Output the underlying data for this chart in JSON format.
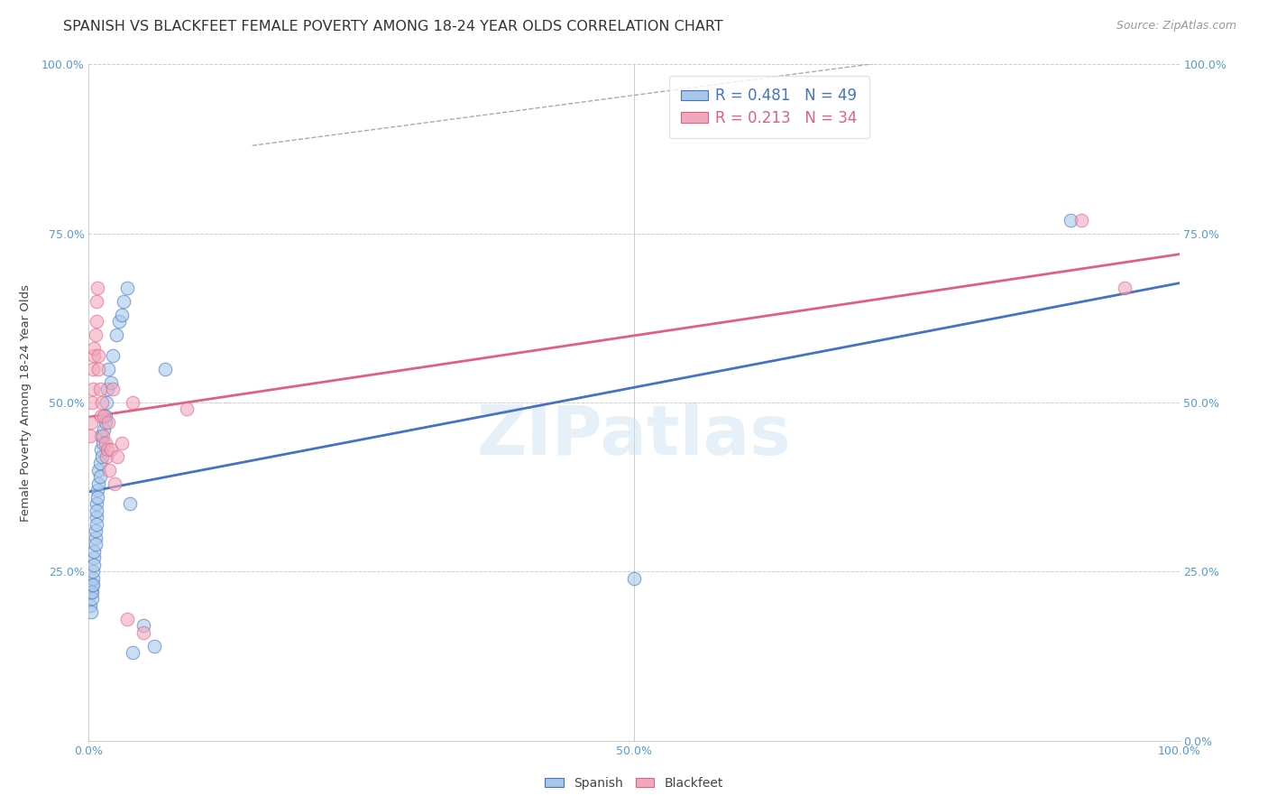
{
  "title": "SPANISH VS BLACKFEET FEMALE POVERTY AMONG 18-24 YEAR OLDS CORRELATION CHART",
  "source": "Source: ZipAtlas.com",
  "ylabel": "Female Poverty Among 18-24 Year Olds",
  "watermark": "ZIPatlas",
  "spanish_color": "#A8C8E8",
  "blackfeet_color": "#F0A8BC",
  "spanish_line_color": "#4472C4",
  "blackfeet_line_color": "#E06080",
  "spanish_x": [
    0.001,
    0.002,
    0.002,
    0.003,
    0.003,
    0.003,
    0.004,
    0.004,
    0.004,
    0.005,
    0.005,
    0.005,
    0.006,
    0.006,
    0.006,
    0.007,
    0.007,
    0.007,
    0.007,
    0.008,
    0.008,
    0.009,
    0.009,
    0.01,
    0.01,
    0.011,
    0.011,
    0.012,
    0.013,
    0.014,
    0.015,
    0.015,
    0.016,
    0.017,
    0.018,
    0.02,
    0.022,
    0.025,
    0.028,
    0.03,
    0.032,
    0.035,
    0.038,
    0.04,
    0.05,
    0.06,
    0.07,
    0.5,
    0.9
  ],
  "spanish_y": [
    0.2,
    0.19,
    0.22,
    0.21,
    0.23,
    0.22,
    0.24,
    0.23,
    0.25,
    0.27,
    0.26,
    0.28,
    0.3,
    0.29,
    0.31,
    0.33,
    0.35,
    0.34,
    0.32,
    0.37,
    0.36,
    0.38,
    0.4,
    0.39,
    0.41,
    0.43,
    0.45,
    0.42,
    0.44,
    0.46,
    0.48,
    0.47,
    0.5,
    0.52,
    0.55,
    0.53,
    0.57,
    0.6,
    0.62,
    0.63,
    0.65,
    0.67,
    0.35,
    0.13,
    0.17,
    0.14,
    0.55,
    0.24,
    0.77
  ],
  "blackfeet_x": [
    0.001,
    0.002,
    0.003,
    0.004,
    0.004,
    0.005,
    0.005,
    0.006,
    0.007,
    0.007,
    0.008,
    0.009,
    0.009,
    0.01,
    0.011,
    0.012,
    0.013,
    0.014,
    0.015,
    0.016,
    0.017,
    0.018,
    0.019,
    0.02,
    0.022,
    0.024,
    0.026,
    0.03,
    0.035,
    0.04,
    0.05,
    0.09,
    0.91,
    0.95
  ],
  "blackfeet_y": [
    0.45,
    0.47,
    0.5,
    0.52,
    0.55,
    0.57,
    0.58,
    0.6,
    0.62,
    0.65,
    0.67,
    0.57,
    0.55,
    0.52,
    0.48,
    0.5,
    0.45,
    0.48,
    0.44,
    0.42,
    0.43,
    0.47,
    0.4,
    0.43,
    0.52,
    0.38,
    0.42,
    0.44,
    0.18,
    0.5,
    0.16,
    0.49,
    0.77,
    0.67
  ],
  "xlim": [
    0.0,
    1.0
  ],
  "ylim": [
    0.0,
    1.0
  ],
  "xticks": [
    0.0,
    0.1,
    0.2,
    0.3,
    0.4,
    0.5,
    0.6,
    0.7,
    0.8,
    0.9,
    1.0
  ],
  "xticklabels": [
    "0.0%",
    "",
    "",
    "",
    "",
    "50.0%",
    "",
    "",
    "",
    "",
    "100.0%"
  ],
  "yticks": [
    0.0,
    0.25,
    0.5,
    0.75,
    1.0
  ],
  "left_yticklabels": [
    "",
    "25.0%",
    "50.0%",
    "75.0%",
    "100.0%"
  ],
  "right_yticklabels": [
    "0.0%",
    "25.0%",
    "50.0%",
    "75.0%",
    "100.0%"
  ],
  "marker_size": 110,
  "alpha": 0.6,
  "title_fontsize": 11.5,
  "source_fontsize": 9,
  "axis_label_fontsize": 9.5,
  "tick_fontsize": 9,
  "tick_color": "#5599DD",
  "background_color": "#FFFFFF",
  "grid_color": "#CCCCCC",
  "legend_r_spanish": "R = 0.481",
  "legend_n_spanish": "N = 49",
  "legend_r_blackfeet": "R = 0.213",
  "legend_n_blackfeet": "N = 34",
  "dashed_line_x": [
    0.15,
    0.95
  ],
  "dashed_line_y": [
    0.88,
    1.05
  ]
}
